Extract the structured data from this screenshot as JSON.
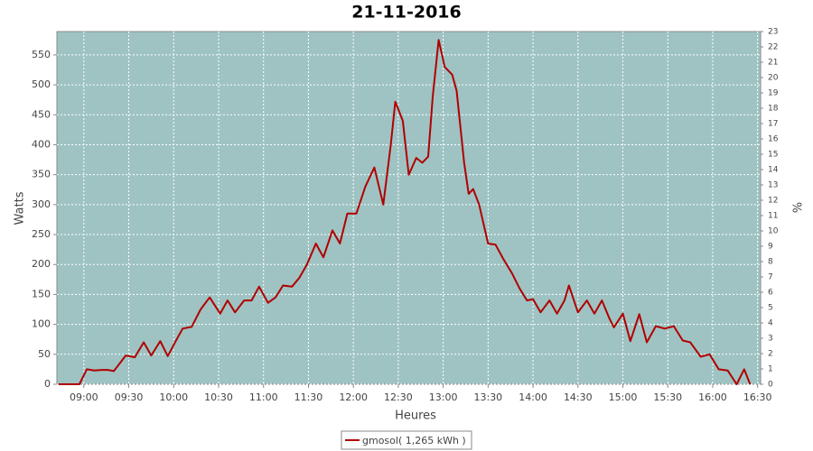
{
  "chart_data": {
    "type": "line",
    "title": "21-11-2016",
    "x_label": "Heures",
    "y_label": "Watts",
    "y2_label": "%",
    "x": [
      "08:43",
      "08:57",
      "09:02",
      "09:07",
      "09:12",
      "09:16",
      "09:20",
      "09:28",
      "09:34",
      "09:40",
      "09:45",
      "09:51",
      "09:56",
      "10:02",
      "10:06",
      "10:12",
      "10:18",
      "10:24",
      "10:31",
      "10:36",
      "10:41",
      "10:47",
      "10:52",
      "10:57",
      "11:03",
      "11:08",
      "11:13",
      "11:19",
      "11:24",
      "11:29",
      "11:35",
      "11:40",
      "11:46",
      "11:51",
      "11:56",
      "12:02",
      "12:08",
      "12:14",
      "12:20",
      "12:25",
      "12:28",
      "12:33",
      "12:37",
      "12:42",
      "12:46",
      "12:50",
      "12:53",
      "12:57",
      "13:01",
      "13:06",
      "13:09",
      "13:14",
      "13:17",
      "13:20",
      "13:24",
      "13:30",
      "13:35",
      "13:40",
      "13:46",
      "13:51",
      "13:56",
      "14:00",
      "14:05",
      "14:11",
      "14:16",
      "14:21",
      "14:24",
      "14:30",
      "14:36",
      "14:41",
      "14:46",
      "14:51",
      "14:54",
      "15:00",
      "15:05",
      "15:11",
      "15:16",
      "15:22",
      "15:28",
      "15:34",
      "15:40",
      "15:45",
      "15:52",
      "15:58",
      "16:04",
      "16:10",
      "16:16",
      "16:21",
      "16:25"
    ],
    "series": [
      {
        "name": "gmosol( 1,265 kWh )",
        "color": "#b00000",
        "values": [
          0,
          0,
          25,
          23,
          24,
          24,
          22,
          48,
          45,
          70,
          48,
          72,
          47,
          75,
          93,
          96,
          125,
          145,
          118,
          140,
          120,
          140,
          140,
          163,
          136,
          145,
          165,
          163,
          178,
          200,
          235,
          212,
          257,
          235,
          285,
          285,
          330,
          362,
          300,
          400,
          472,
          440,
          350,
          378,
          370,
          380,
          480,
          575,
          530,
          517,
          490,
          370,
          318,
          326,
          300,
          235,
          233,
          210,
          185,
          160,
          140,
          142,
          120,
          140,
          118,
          140,
          165,
          120,
          140,
          118,
          140,
          110,
          95,
          118,
          72,
          117,
          70,
          97,
          93,
          97,
          73,
          70,
          46,
          50,
          25,
          23,
          0,
          25,
          0
        ]
      }
    ],
    "xlim": [
      "08:42",
      "16:32"
    ],
    "xticks": [
      "09:00",
      "09:30",
      "10:00",
      "10:30",
      "11:00",
      "11:30",
      "12:00",
      "12:30",
      "13:00",
      "13:30",
      "14:00",
      "14:30",
      "15:00",
      "15:30",
      "16:00",
      "16:30"
    ],
    "ylim": [
      0,
      589
    ],
    "yticks": [
      0,
      50,
      100,
      150,
      200,
      250,
      300,
      350,
      400,
      450,
      500,
      550
    ],
    "y2lim": [
      0,
      23
    ],
    "y2ticks": [
      0,
      1,
      2,
      3,
      4,
      5,
      6,
      7,
      8,
      9,
      10,
      11,
      12,
      13,
      14,
      15,
      16,
      17,
      18,
      19,
      20,
      21,
      22,
      23
    ],
    "grid": true,
    "background": "#9fc3c3"
  }
}
